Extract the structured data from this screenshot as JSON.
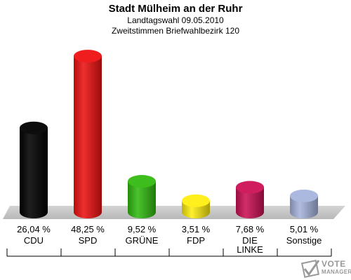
{
  "header": {
    "title": "Stadt Mülheim an der Ruhr",
    "subtitle1": "Landtagswahl 09.05.2010",
    "subtitle2": "Zweitstimmen Briefwahlbezirk 120"
  },
  "chart_data": {
    "type": "bar",
    "title": "Stadt Mülheim an der Ruhr",
    "categories": [
      "CDU",
      "SPD",
      "GRÜNE",
      "FDP",
      "DIE LINKE",
      "Sonstige"
    ],
    "values": [
      26.04,
      48.25,
      9.52,
      3.51,
      7.68,
      5.01
    ],
    "value_labels": [
      "26,04 %",
      "48,25 %",
      "9,52 %",
      "3,51 %",
      "7,68 %",
      "5,01 %"
    ],
    "colors": [
      "#000000",
      "#ee1111",
      "#33bb11",
      "#ffee11",
      "#cc1155",
      "#a7b4dd"
    ],
    "ylim": [
      0,
      50
    ],
    "grid": false,
    "legend": "none"
  },
  "logo": {
    "line1": "VOTE",
    "line2": "MANAGER"
  }
}
